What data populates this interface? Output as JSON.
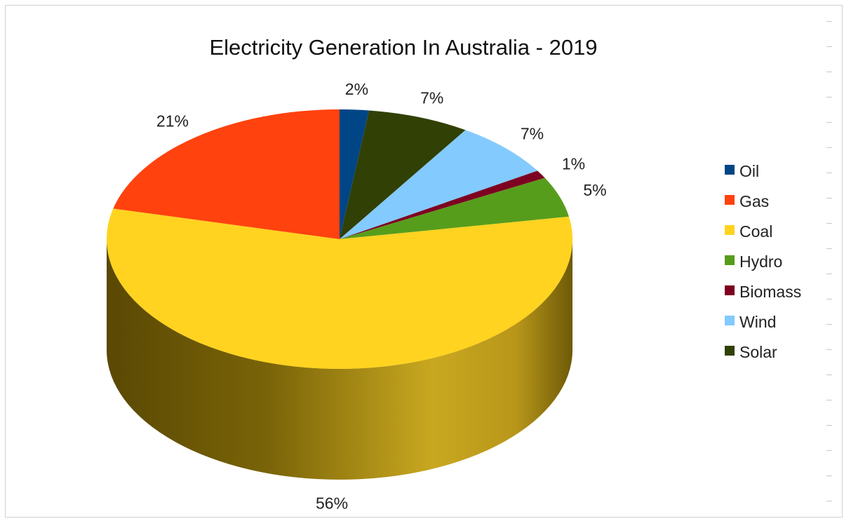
{
  "chart_data": {
    "type": "pie",
    "title": "Electricity Generation In Australia - 2019",
    "slices": [
      {
        "name": "Oil",
        "value": 2,
        "label": "2%",
        "color": "#004586"
      },
      {
        "name": "Solar",
        "value": 7,
        "label": "7%",
        "color": "#314004"
      },
      {
        "name": "Wind",
        "value": 7,
        "label": "7%",
        "color": "#83caff"
      },
      {
        "name": "Biomass",
        "value": 1,
        "label": "1%",
        "color": "#7e0021"
      },
      {
        "name": "Hydro",
        "value": 5,
        "label": "5%",
        "color": "#579d1c"
      },
      {
        "name": "Coal",
        "value": 56,
        "label": "56%",
        "color": "#ffd320"
      },
      {
        "name": "Gas",
        "value": 21,
        "label": "21%",
        "color": "#ff420e"
      }
    ],
    "legend": {
      "position": "right",
      "entries": [
        {
          "name": "Oil",
          "color": "#004586"
        },
        {
          "name": "Gas",
          "color": "#ff420e"
        },
        {
          "name": "Coal",
          "color": "#ffd320"
        },
        {
          "name": "Hydro",
          "color": "#579d1c"
        },
        {
          "name": "Biomass",
          "color": "#7e0021"
        },
        {
          "name": "Wind",
          "color": "#83caff"
        },
        {
          "name": "Solar",
          "color": "#314004"
        }
      ]
    },
    "style": "3d",
    "start": "top, clockwise"
  }
}
